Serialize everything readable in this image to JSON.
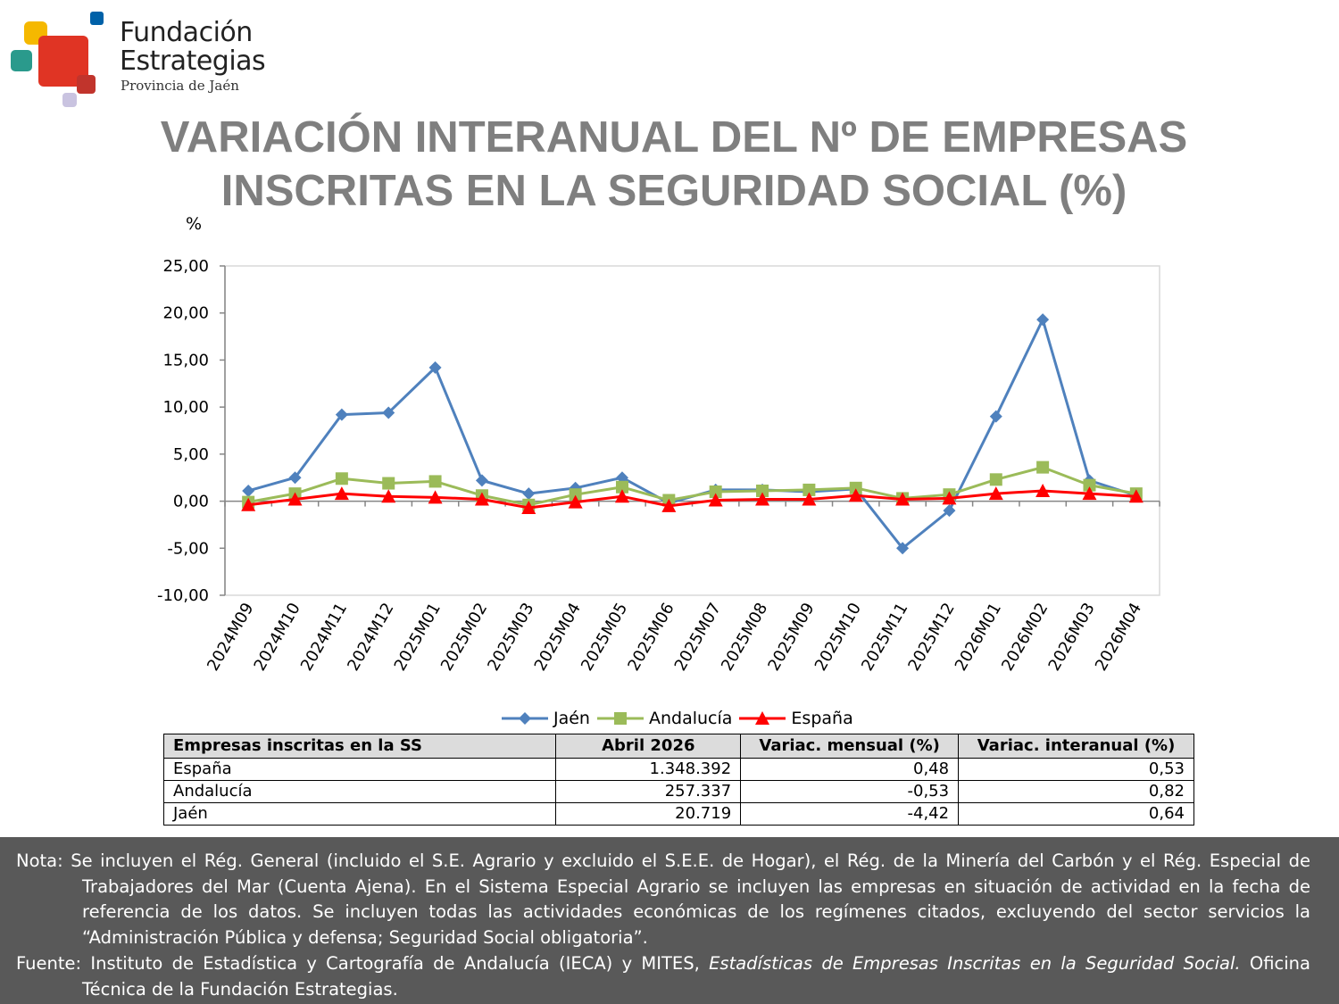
{
  "logo": {
    "line1": "Fundación",
    "line2": "Estrategias",
    "line3": "Provincia de Jaén",
    "colors": [
      "#f5b800",
      "#e03424",
      "#2a9a8c",
      "#0061a8",
      "#c1342c",
      "#c9c3e0"
    ]
  },
  "title": {
    "line1": "VARIACIÓN INTERANUAL DEL Nº DE EMPRESAS",
    "line2": "INSCRITAS EN LA SEGURIDAD SOCIAL (%)"
  },
  "unit_label": "%",
  "chart_data": {
    "type": "line",
    "ylim": [
      -10,
      25
    ],
    "y_ticks": [
      "25,00",
      "20,00",
      "15,00",
      "10,00",
      "5,00",
      "0,00",
      "-5,00",
      "-10,00"
    ],
    "y_tick_values": [
      25,
      20,
      15,
      10,
      5,
      0,
      -5,
      -10
    ],
    "grid": false,
    "legend_position": "bottom",
    "categories": [
      "2024M09",
      "2024M10",
      "2024M11",
      "2024M12",
      "2025M01",
      "2025M02",
      "2025M03",
      "2025M04",
      "2025M05",
      "2025M06",
      "2025M07",
      "2025M08",
      "2025M09",
      "2025M10",
      "2025M11",
      "2025M12",
      "2026M01",
      "2026M02",
      "2026M03",
      "2026M04"
    ],
    "series": [
      {
        "name": "Jaén",
        "color": "#4f81bd",
        "marker": "diamond",
        "values": [
          1.1,
          2.5,
          9.2,
          9.4,
          14.2,
          2.2,
          0.8,
          1.4,
          2.5,
          -0.2,
          1.2,
          1.2,
          1.0,
          1.3,
          -5.0,
          -1.0,
          9.0,
          19.3,
          2.2,
          0.6
        ]
      },
      {
        "name": "Andalucía",
        "color": "#9bbb59",
        "marker": "square",
        "values": [
          -0.1,
          0.8,
          2.4,
          1.9,
          2.1,
          0.6,
          -0.4,
          0.7,
          1.5,
          0.1,
          1.0,
          1.1,
          1.2,
          1.4,
          0.3,
          0.7,
          2.3,
          3.6,
          1.7,
          0.8
        ]
      },
      {
        "name": "España",
        "color": "#ff0000",
        "marker": "triangle",
        "values": [
          -0.4,
          0.2,
          0.8,
          0.5,
          0.4,
          0.2,
          -0.7,
          -0.1,
          0.5,
          -0.5,
          0.1,
          0.2,
          0.2,
          0.6,
          0.2,
          0.3,
          0.8,
          1.1,
          0.8,
          0.5
        ]
      }
    ]
  },
  "table": {
    "headers": [
      "Empresas inscritas en la SS",
      "Abril 2026",
      "Variac. mensual (%)",
      "Variac. interanual (%)"
    ],
    "rows": [
      [
        "España",
        "1.348.392",
        "0,48",
        "0,53"
      ],
      [
        "Andalucía",
        "257.337",
        "-0,53",
        "0,82"
      ],
      [
        "Jaén",
        "20.719",
        "-4,42",
        "0,64"
      ]
    ]
  },
  "notes": {
    "nota": "Nota: Se incluyen el Rég. General (incluido el S.E. Agrario y excluido el S.E.E. de Hogar), el Rég. de la Minería del Carbón y el Rég. Especial de Trabajadores del Mar (Cuenta Ajena). En el Sistema Especial Agrario se incluyen las empresas en situación de actividad en la fecha de referencia de los datos. Se incluyen todas las actividades económicas de los regímenes citados, excluyendo del sector servicios la “Administración Pública y defensa; Seguridad Social obligatoria”.",
    "fuente_prefix": "Fuente: Instituto de Estadística y Cartografía de Andalucía (IECA) y MITES, ",
    "fuente_italic": "Estadísticas de Empresas Inscritas en la Seguridad Social.",
    "fuente_suffix": " Oficina Técnica de la Fundación Estrategias."
  }
}
